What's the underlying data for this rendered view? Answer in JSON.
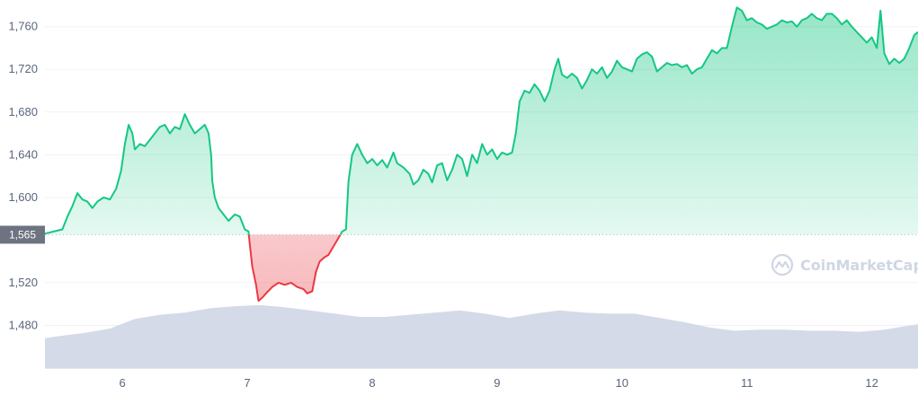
{
  "chart_data": {
    "type": "area",
    "title": "",
    "xlabel": "",
    "ylabel": "",
    "x_ticks": [
      "6",
      "7",
      "8",
      "9",
      "10",
      "11",
      "12"
    ],
    "y_ticks": [
      "1,480",
      "1,520",
      "1,565",
      "1,600",
      "1,640",
      "1,680",
      "1,720",
      "1,760"
    ],
    "ylim": [
      1440,
      1785
    ],
    "xlim": [
      5.38,
      12.37
    ],
    "grid": true,
    "baseline": {
      "value": 1565,
      "label": "1,565"
    },
    "up_color": "#16c784",
    "down_color": "#ea3943",
    "volume_color": "#cfd6e4",
    "series": [
      {
        "values": [
          [
            5.38,
            1566
          ],
          [
            5.45,
            1568
          ],
          [
            5.52,
            1570
          ],
          [
            5.56,
            1582
          ],
          [
            5.6,
            1592
          ],
          [
            5.64,
            1604
          ],
          [
            5.68,
            1598
          ],
          [
            5.72,
            1596
          ],
          [
            5.76,
            1590
          ],
          [
            5.8,
            1596
          ],
          [
            5.85,
            1600
          ],
          [
            5.9,
            1598
          ],
          [
            5.95,
            1608
          ],
          [
            5.99,
            1625
          ],
          [
            6.02,
            1650
          ],
          [
            6.05,
            1668
          ],
          [
            6.08,
            1660
          ],
          [
            6.1,
            1645
          ],
          [
            6.14,
            1650
          ],
          [
            6.18,
            1648
          ],
          [
            6.22,
            1654
          ],
          [
            6.26,
            1660
          ],
          [
            6.3,
            1666
          ],
          [
            6.34,
            1668
          ],
          [
            6.38,
            1660
          ],
          [
            6.42,
            1666
          ],
          [
            6.46,
            1664
          ],
          [
            6.5,
            1678
          ],
          [
            6.54,
            1668
          ],
          [
            6.58,
            1660
          ],
          [
            6.62,
            1664
          ],
          [
            6.66,
            1668
          ],
          [
            6.69,
            1660
          ],
          [
            6.71,
            1640
          ],
          [
            6.72,
            1615
          ],
          [
            6.74,
            1600
          ],
          [
            6.77,
            1590
          ],
          [
            6.81,
            1584
          ],
          [
            6.85,
            1578
          ],
          [
            6.9,
            1584
          ],
          [
            6.94,
            1582
          ],
          [
            6.98,
            1570
          ],
          [
            7.01,
            1568
          ],
          [
            7.02,
            1556
          ],
          [
            7.04,
            1535
          ],
          [
            7.07,
            1518
          ],
          [
            7.09,
            1503
          ],
          [
            7.12,
            1506
          ],
          [
            7.15,
            1510
          ],
          [
            7.2,
            1516
          ],
          [
            7.25,
            1520
          ],
          [
            7.3,
            1518
          ],
          [
            7.35,
            1520
          ],
          [
            7.4,
            1516
          ],
          [
            7.45,
            1514
          ],
          [
            7.48,
            1510
          ],
          [
            7.52,
            1512
          ],
          [
            7.55,
            1530
          ],
          [
            7.58,
            1540
          ],
          [
            7.62,
            1544
          ],
          [
            7.65,
            1546
          ],
          [
            7.68,
            1552
          ],
          [
            7.72,
            1560
          ],
          [
            7.76,
            1568
          ],
          [
            7.79,
            1570
          ],
          [
            7.81,
            1615
          ],
          [
            7.84,
            1640
          ],
          [
            7.88,
            1650
          ],
          [
            7.92,
            1640
          ],
          [
            7.96,
            1632
          ],
          [
            8.0,
            1636
          ],
          [
            8.04,
            1630
          ],
          [
            8.08,
            1635
          ],
          [
            8.12,
            1628
          ],
          [
            8.17,
            1642
          ],
          [
            8.2,
            1632
          ],
          [
            8.25,
            1628
          ],
          [
            8.3,
            1622
          ],
          [
            8.33,
            1612
          ],
          [
            8.37,
            1616
          ],
          [
            8.41,
            1626
          ],
          [
            8.45,
            1622
          ],
          [
            8.48,
            1614
          ],
          [
            8.52,
            1630
          ],
          [
            8.56,
            1632
          ],
          [
            8.6,
            1616
          ],
          [
            8.64,
            1626
          ],
          [
            8.68,
            1640
          ],
          [
            8.72,
            1636
          ],
          [
            8.76,
            1620
          ],
          [
            8.8,
            1640
          ],
          [
            8.84,
            1632
          ],
          [
            8.88,
            1650
          ],
          [
            8.92,
            1640
          ],
          [
            8.96,
            1645
          ],
          [
            9.0,
            1636
          ],
          [
            9.04,
            1642
          ],
          [
            9.08,
            1640
          ],
          [
            9.12,
            1642
          ],
          [
            9.15,
            1660
          ],
          [
            9.18,
            1690
          ],
          [
            9.22,
            1700
          ],
          [
            9.26,
            1698
          ],
          [
            9.3,
            1706
          ],
          [
            9.34,
            1700
          ],
          [
            9.38,
            1690
          ],
          [
            9.42,
            1700
          ],
          [
            9.46,
            1720
          ],
          [
            9.49,
            1730
          ],
          [
            9.52,
            1715
          ],
          [
            9.56,
            1712
          ],
          [
            9.6,
            1716
          ],
          [
            9.64,
            1712
          ],
          [
            9.68,
            1702
          ],
          [
            9.72,
            1710
          ],
          [
            9.76,
            1720
          ],
          [
            9.8,
            1716
          ],
          [
            9.84,
            1722
          ],
          [
            9.88,
            1712
          ],
          [
            9.92,
            1718
          ],
          [
            9.96,
            1728
          ],
          [
            10.0,
            1722
          ],
          [
            10.04,
            1720
          ],
          [
            10.08,
            1718
          ],
          [
            10.12,
            1730
          ],
          [
            10.16,
            1734
          ],
          [
            10.2,
            1736
          ],
          [
            10.24,
            1732
          ],
          [
            10.28,
            1718
          ],
          [
            10.32,
            1722
          ],
          [
            10.36,
            1726
          ],
          [
            10.4,
            1724
          ],
          [
            10.44,
            1725
          ],
          [
            10.48,
            1722
          ],
          [
            10.52,
            1724
          ],
          [
            10.56,
            1716
          ],
          [
            10.6,
            1720
          ],
          [
            10.64,
            1722
          ],
          [
            10.68,
            1730
          ],
          [
            10.72,
            1738
          ],
          [
            10.76,
            1735
          ],
          [
            10.8,
            1740
          ],
          [
            10.84,
            1740
          ],
          [
            10.88,
            1760
          ],
          [
            10.92,
            1778
          ],
          [
            10.96,
            1775
          ],
          [
            11.0,
            1766
          ],
          [
            11.04,
            1768
          ],
          [
            11.08,
            1764
          ],
          [
            11.12,
            1762
          ],
          [
            11.16,
            1758
          ],
          [
            11.2,
            1760
          ],
          [
            11.24,
            1762
          ],
          [
            11.28,
            1766
          ],
          [
            11.32,
            1764
          ],
          [
            11.36,
            1765
          ],
          [
            11.4,
            1760
          ],
          [
            11.44,
            1766
          ],
          [
            11.48,
            1768
          ],
          [
            11.52,
            1772
          ],
          [
            11.56,
            1768
          ],
          [
            11.6,
            1766
          ],
          [
            11.64,
            1772
          ],
          [
            11.68,
            1772
          ],
          [
            11.72,
            1768
          ],
          [
            11.76,
            1762
          ],
          [
            11.8,
            1766
          ],
          [
            11.84,
            1760
          ],
          [
            11.88,
            1755
          ],
          [
            11.92,
            1750
          ],
          [
            11.96,
            1745
          ],
          [
            12.0,
            1750
          ],
          [
            12.04,
            1740
          ],
          [
            12.07,
            1775
          ],
          [
            12.1,
            1735
          ],
          [
            12.14,
            1725
          ],
          [
            12.18,
            1730
          ],
          [
            12.22,
            1726
          ],
          [
            12.26,
            1730
          ],
          [
            12.3,
            1740
          ],
          [
            12.34,
            1752
          ],
          [
            12.37,
            1755
          ]
        ]
      }
    ],
    "volume": [
      [
        5.38,
        1468
      ],
      [
        5.5,
        1470
      ],
      [
        5.7,
        1473
      ],
      [
        5.9,
        1477
      ],
      [
        6.1,
        1486
      ],
      [
        6.3,
        1490
      ],
      [
        6.5,
        1492
      ],
      [
        6.7,
        1496
      ],
      [
        6.9,
        1498
      ],
      [
        7.1,
        1499
      ],
      [
        7.3,
        1497
      ],
      [
        7.5,
        1494
      ],
      [
        7.7,
        1491
      ],
      [
        7.9,
        1488
      ],
      [
        8.1,
        1488
      ],
      [
        8.3,
        1490
      ],
      [
        8.5,
        1492
      ],
      [
        8.7,
        1494
      ],
      [
        8.9,
        1491
      ],
      [
        9.1,
        1487
      ],
      [
        9.3,
        1491
      ],
      [
        9.5,
        1494
      ],
      [
        9.7,
        1492
      ],
      [
        9.9,
        1491
      ],
      [
        10.1,
        1491
      ],
      [
        10.3,
        1487
      ],
      [
        10.5,
        1483
      ],
      [
        10.7,
        1478
      ],
      [
        10.9,
        1475
      ],
      [
        11.1,
        1476
      ],
      [
        11.3,
        1476
      ],
      [
        11.5,
        1475
      ],
      [
        11.7,
        1475
      ],
      [
        11.9,
        1474
      ],
      [
        12.1,
        1476
      ],
      [
        12.25,
        1479
      ],
      [
        12.37,
        1481
      ]
    ]
  },
  "watermark": {
    "text": "CoinMarketCap",
    "icon": "coinmarketcap-logo-icon"
  }
}
